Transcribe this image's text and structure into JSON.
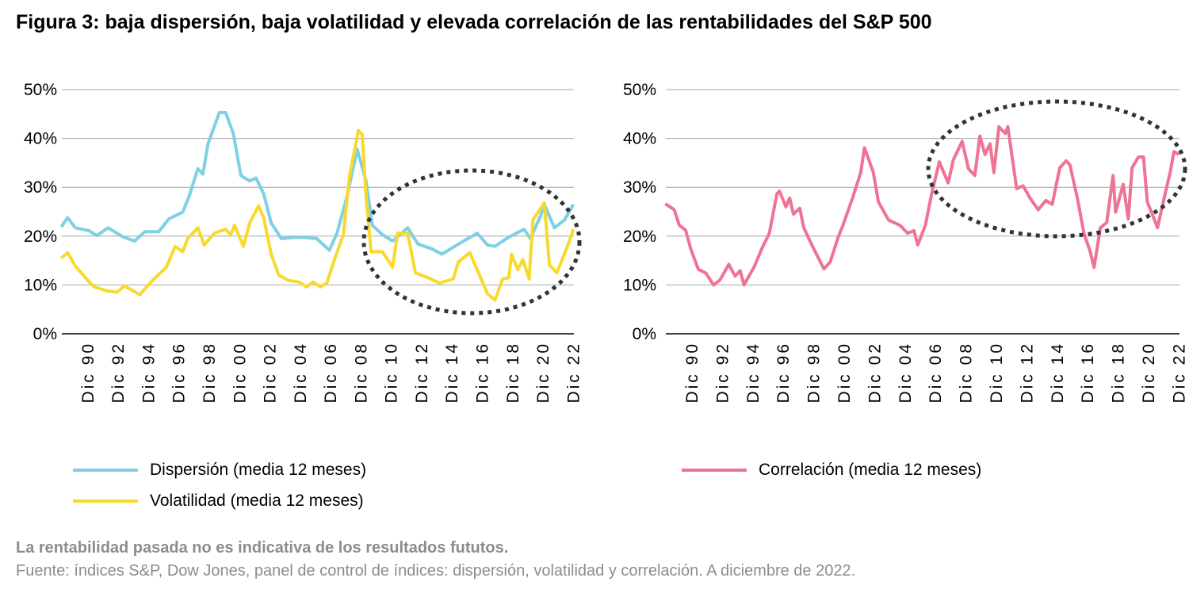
{
  "title": "Figura 3: baja dispersión, baja volatilidad y elevada correlación de las rentabilidades del S&P 500",
  "note": "La rentabilidad pasada no es indicativa de los resultados fututos.",
  "source": "Fuente: índices S&P, Dow Jones, panel de control de índices: dispersión, volatilidad y correlación. A diciembre de 2022.",
  "colors": {
    "dispersion": "#7fd0e4",
    "volatility": "#f8d92e",
    "correlation": "#ef7393",
    "highlight": "#333333",
    "grid": "#a6a6a6"
  },
  "chart_data": [
    {
      "type": "line",
      "title": "",
      "ylim": [
        0,
        50
      ],
      "yticks": [
        "0%",
        "10%",
        "20%",
        "30%",
        "40%",
        "50%"
      ],
      "xticks": [
        "Dic 90",
        "Dic 92",
        "Dic 94",
        "Dic 96",
        "Dic 98",
        "Dic 00",
        "Dic 02",
        "Dic 04",
        "Dic 06",
        "Dic 08",
        "Dic 10",
        "Dic 12",
        "Dic 14",
        "Dic 16",
        "Dic 18",
        "Dic 20",
        "Dic 22"
      ],
      "grid": true,
      "legend": "bottom",
      "annotation": "dotted ellipse highlighting 2009–2022",
      "series": [
        {
          "name": "Dispersión (media 12 meses)",
          "color": "#7fd0e4",
          "x": [
            "1989-03",
            "1989-08",
            "1990-02",
            "1991-01",
            "1991-07",
            "1992-04",
            "1993-04",
            "1994-01",
            "1994-09",
            "1995-08",
            "1996-04",
            "1997-03",
            "1997-08",
            "1998-03",
            "1998-07",
            "1998-11",
            "1999-08",
            "2000-01",
            "2000-07",
            "2001-01",
            "2001-08",
            "2002-01",
            "2002-07",
            "2003-01",
            "2003-09",
            "2004-11",
            "2006-01",
            "2006-11",
            "2007-05",
            "2008-01",
            "2008-09",
            "2009-04",
            "2009-09",
            "2010-05",
            "2011-01",
            "2012-01",
            "2012-09",
            "2013-08",
            "2014-04",
            "2015-04",
            "2016-08",
            "2017-04",
            "2017-10",
            "2018-09",
            "2019-09",
            "2020-02",
            "2020-10",
            "2021-01",
            "2021-09",
            "2022-05",
            "2022-12"
          ],
          "y": [
            21.9,
            23.8,
            21.7,
            21.1,
            20.1,
            21.7,
            19.8,
            19.0,
            20.9,
            20.9,
            23.5,
            24.9,
            28.1,
            33.8,
            32.7,
            38.9,
            45.3,
            45.3,
            41.0,
            32.4,
            31.3,
            31.9,
            28.7,
            22.7,
            19.5,
            19.8,
            19.5,
            17.1,
            20.6,
            28.1,
            37.8,
            31.3,
            22.2,
            20.3,
            19.0,
            21.7,
            18.4,
            17.4,
            16.3,
            18.2,
            20.6,
            18.2,
            17.9,
            19.8,
            21.4,
            19.5,
            24.1,
            26.5,
            21.7,
            23.3,
            26.5
          ]
        },
        {
          "name": "Volatilidad (media 12 meses)",
          "color": "#f8d92e",
          "x": [
            "1989-03",
            "1989-08",
            "1990-02",
            "1990-10",
            "1991-05",
            "1992-03",
            "1992-11",
            "1993-05",
            "1994-05",
            "1995-03",
            "1996-02",
            "1996-09",
            "1997-03",
            "1997-07",
            "1998-03",
            "1998-08",
            "1999-04",
            "2000-01",
            "2000-05",
            "2000-08",
            "2001-03",
            "2001-08",
            "2002-03",
            "2002-07",
            "2003-01",
            "2003-07",
            "2004-03",
            "2004-11",
            "2005-05",
            "2005-10",
            "2006-04",
            "2006-09",
            "2007-03",
            "2007-10",
            "2008-03",
            "2008-10",
            "2009-01",
            "2009-04",
            "2009-08",
            "2010-05",
            "2011-01",
            "2011-05",
            "2012-01",
            "2012-07",
            "2013-05",
            "2014-02",
            "2015-01",
            "2015-05",
            "2016-02",
            "2016-09",
            "2017-04",
            "2017-10",
            "2018-04",
            "2018-09",
            "2018-11",
            "2019-04",
            "2019-08",
            "2020-01",
            "2020-04",
            "2021-01",
            "2021-05",
            "2021-11",
            "2022-08",
            "2022-12"
          ],
          "y": [
            15.5,
            16.6,
            13.9,
            11.5,
            9.6,
            8.8,
            8.5,
            9.8,
            8.0,
            10.9,
            13.6,
            17.9,
            16.8,
            19.5,
            21.7,
            18.2,
            20.6,
            21.4,
            20.3,
            22.2,
            17.9,
            22.7,
            26.2,
            23.8,
            16.3,
            12.0,
            10.9,
            10.6,
            9.6,
            10.6,
            9.6,
            10.4,
            15.2,
            20.3,
            32.4,
            41.6,
            40.8,
            28.1,
            16.8,
            16.8,
            13.6,
            20.6,
            20.6,
            12.5,
            11.5,
            10.4,
            11.2,
            14.7,
            16.6,
            12.5,
            8.2,
            6.9,
            11.2,
            11.5,
            16.3,
            13.1,
            15.2,
            11.2,
            23.3,
            26.8,
            14.1,
            12.5,
            18.4,
            21.4
          ]
        }
      ]
    },
    {
      "type": "line",
      "title": "",
      "ylim": [
        0,
        50
      ],
      "yticks": [
        "0%",
        "10%",
        "20%",
        "30%",
        "40%",
        "50%"
      ],
      "xticks": [
        "Dic 90",
        "Dic 92",
        "Dic 94",
        "Dic 96",
        "Dic 98",
        "Dic 00",
        "Dic 02",
        "Dic 04",
        "Dic 06",
        "Dic 08",
        "Dic 10",
        "Dic 12",
        "Dic 14",
        "Dic 16",
        "Dic 18",
        "Dic 20",
        "Dic 22"
      ],
      "grid": true,
      "legend": "bottom",
      "annotation": "dotted ellipse highlighting 2007–2022",
      "series": [
        {
          "name": "Correlación (media 12 meses)",
          "color": "#ef7393",
          "x": [
            "1989-03",
            "1989-10",
            "1990-02",
            "1990-07",
            "1990-11",
            "1991-05",
            "1991-11",
            "1992-05",
            "1992-10",
            "1993-05",
            "1993-10",
            "1994-02",
            "1994-05",
            "1995-01",
            "1995-07",
            "1996-01",
            "1996-07",
            "1996-09",
            "1997-02",
            "1997-05",
            "1997-08",
            "1998-01",
            "1998-04",
            "1998-11",
            "1999-08",
            "2000-01",
            "2000-07",
            "2000-11",
            "2001-07",
            "2002-01",
            "2002-04",
            "2002-11",
            "2003-03",
            "2003-11",
            "2004-08",
            "2005-02",
            "2005-07",
            "2005-10",
            "2006-04",
            "2006-09",
            "2007-03",
            "2007-10",
            "2008-02",
            "2008-09",
            "2009-02",
            "2009-07",
            "2009-11",
            "2010-03",
            "2010-07",
            "2010-10",
            "2011-02",
            "2011-07",
            "2011-09",
            "2012-04",
            "2012-09",
            "2013-03",
            "2013-09",
            "2014-03",
            "2014-08",
            "2015-02",
            "2015-07",
            "2015-10",
            "2016-04",
            "2016-09",
            "2017-02",
            "2017-05",
            "2017-10",
            "2018-03",
            "2018-08",
            "2018-10",
            "2019-04",
            "2019-08",
            "2019-11",
            "2020-04",
            "2020-08",
            "2020-11",
            "2021-04",
            "2021-07",
            "2022-02",
            "2022-05",
            "2022-08",
            "2022-12"
          ],
          "y": [
            26.6,
            25.4,
            22.2,
            21.2,
            17.4,
            13.2,
            12.4,
            10.0,
            11.0,
            14.2,
            11.8,
            12.9,
            10.0,
            13.7,
            17.4,
            20.6,
            28.7,
            29.2,
            26.0,
            27.8,
            24.5,
            25.7,
            21.8,
            17.9,
            13.3,
            14.7,
            19.6,
            22.2,
            28.1,
            33.0,
            38.1,
            33.0,
            27.0,
            23.3,
            22.2,
            20.6,
            21.1,
            18.2,
            22.2,
            28.7,
            35.2,
            30.9,
            35.6,
            39.4,
            33.8,
            32.4,
            40.5,
            36.7,
            38.9,
            33.0,
            42.4,
            41.0,
            42.4,
            29.7,
            30.3,
            27.6,
            25.4,
            27.3,
            26.5,
            34.0,
            35.4,
            34.6,
            27.6,
            20.6,
            16.8,
            13.6,
            21.7,
            22.8,
            32.4,
            24.9,
            30.6,
            23.5,
            34.0,
            36.2,
            36.2,
            27.0,
            23.8,
            21.7,
            29.7,
            33.0,
            37.3,
            36.7
          ]
        }
      ]
    }
  ]
}
